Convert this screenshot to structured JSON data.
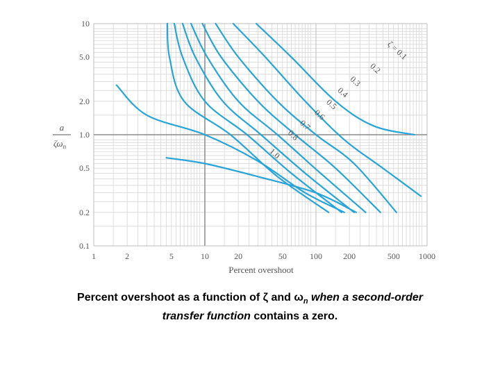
{
  "chart_data": {
    "type": "line",
    "xscale": "log",
    "yscale": "log",
    "xlim": [
      1,
      1000
    ],
    "ylim": [
      0.1,
      10
    ],
    "xlabel": "Percent overshoot",
    "ylabel_top": "a",
    "ylabel_bottom": "ζω",
    "ylabel_sub": "n",
    "x_ticks": [
      1,
      2,
      5,
      10,
      20,
      50,
      100,
      200,
      500,
      1000
    ],
    "x_tick_labels": [
      "1",
      "2",
      "5",
      "10",
      "20",
      "50",
      "100",
      "200",
      "500",
      "1000"
    ],
    "y_ticks": [
      0.1,
      0.2,
      0.5,
      1.0,
      2.0,
      5.0,
      10
    ],
    "y_tick_labels": [
      "0.1",
      "0.2",
      "0.5",
      "1.0",
      "2.0",
      "5.0",
      "10"
    ],
    "line_color": "#27a4d8",
    "series": [
      {
        "name": "ζ = 0.1",
        "points": [
          [
            29,
            10
          ],
          [
            60,
            5
          ],
          [
            150,
            2
          ],
          [
            330,
            1.2
          ],
          [
            770,
            1.0
          ]
        ]
      },
      {
        "name": "0.2",
        "points": [
          [
            18,
            10
          ],
          [
            35,
            5
          ],
          [
            80,
            2
          ],
          [
            180,
            0.9
          ],
          [
            400,
            0.5
          ],
          [
            880,
            0.28
          ]
        ]
      },
      {
        "name": "0.3",
        "points": [
          [
            12.5,
            10
          ],
          [
            20,
            5
          ],
          [
            45,
            2
          ],
          [
            100,
            1.0
          ],
          [
            220,
            0.55
          ],
          [
            530,
            0.2
          ]
        ]
      },
      {
        "name": "0.4",
        "points": [
          [
            9.5,
            10
          ],
          [
            14,
            5
          ],
          [
            30,
            2
          ],
          [
            65,
            1.0
          ],
          [
            150,
            0.5
          ],
          [
            380,
            0.2
          ]
        ]
      },
      {
        "name": "0.5",
        "points": [
          [
            7.5,
            10
          ],
          [
            10.5,
            5
          ],
          [
            20,
            2
          ],
          [
            45,
            1.0
          ],
          [
            110,
            0.45
          ],
          [
            280,
            0.2
          ]
        ]
      },
      {
        "name": "0.6",
        "points": [
          [
            6.3,
            10
          ],
          [
            8.2,
            5
          ],
          [
            14.5,
            2
          ],
          [
            32,
            1.0
          ],
          [
            80,
            0.45
          ],
          [
            220,
            0.2
          ]
        ]
      },
      {
        "name": "0.7",
        "points": [
          [
            5.3,
            10
          ],
          [
            6.3,
            5
          ],
          [
            10,
            2
          ],
          [
            24,
            1.0
          ],
          [
            60,
            0.45
          ],
          [
            170,
            0.2
          ]
        ]
      },
      {
        "name": "0.8",
        "points": [
          [
            4.6,
            10
          ],
          [
            4.8,
            5
          ],
          [
            6.5,
            2
          ],
          [
            17,
            1.0
          ],
          [
            45,
            0.42
          ],
          [
            130,
            0.2
          ]
        ]
      },
      {
        "name": "1.0 (upper)",
        "points": [
          [
            1.6,
            2.8
          ],
          [
            3,
            1.5
          ],
          [
            10,
            1.0
          ],
          [
            30,
            0.58
          ],
          [
            80,
            0.3
          ],
          [
            180,
            0.2
          ]
        ]
      },
      {
        "name": "1.0",
        "points": [
          [
            4.5,
            0.62
          ],
          [
            10,
            0.55
          ],
          [
            30,
            0.42
          ],
          [
            100,
            0.3
          ],
          [
            230,
            0.2
          ]
        ]
      }
    ],
    "curve_labels": [
      {
        "text": "ζ = 0.1",
        "x": 520,
        "y": 5.5
      },
      {
        "text": "0.2",
        "x": 330,
        "y": 3.8
      },
      {
        "text": "0.3",
        "x": 218,
        "y": 2.9
      },
      {
        "text": "0.4",
        "x": 168,
        "y": 2.3
      },
      {
        "text": "0.5",
        "x": 133,
        "y": 1.8
      },
      {
        "text": "0.6",
        "x": 104,
        "y": 1.45
      },
      {
        "text": "0.7",
        "x": 77,
        "y": 1.17
      },
      {
        "text": "0.8",
        "x": 60,
        "y": 0.95
      },
      {
        "text": "1.0",
        "x": 41,
        "y": 0.65
      }
    ]
  },
  "caption": {
    "part1": "Percent overshoot as a function of ζ and ω",
    "part1_sub": "n",
    "part2": " when a second-order",
    "part3": "transfer function",
    "part4": " contains a zero."
  }
}
